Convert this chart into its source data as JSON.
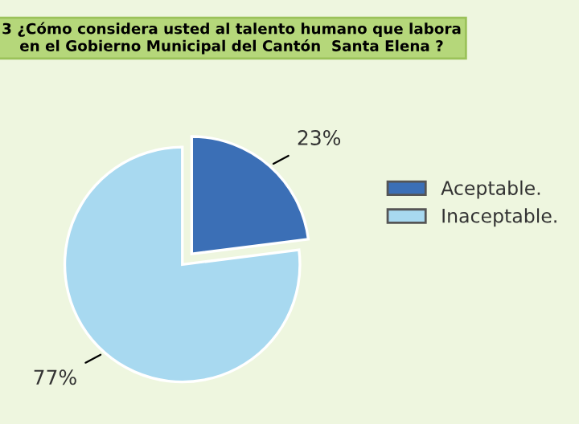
{
  "chart_data": {
    "type": "pie",
    "title": "3 ¿Cómo considera usted al talento humano que labora\nen el Gobierno Municipal del Cantón  Santa Elena ?",
    "categories": [
      "Aceptable.",
      "Inaceptable."
    ],
    "values": [
      23,
      77
    ],
    "colors": [
      "#3b6fb6",
      "#a8d9f0"
    ],
    "value_labels": [
      "23%",
      "77%"
    ],
    "legend": "right"
  }
}
